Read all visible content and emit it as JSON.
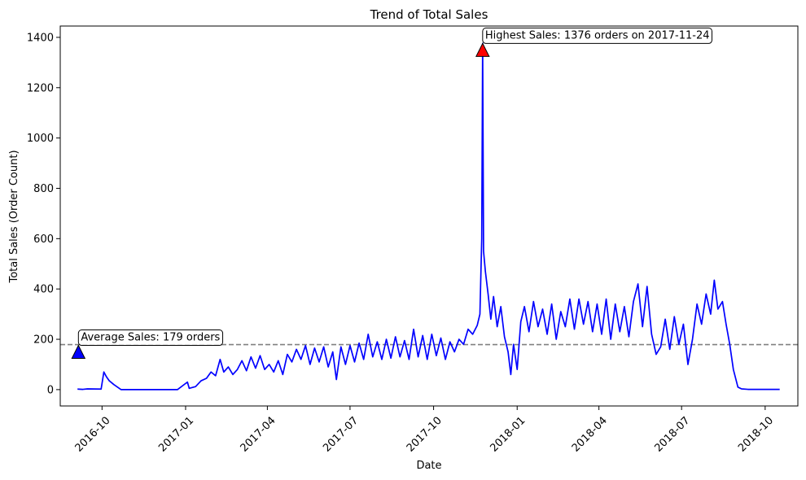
{
  "chart_data": {
    "type": "line",
    "title": "Trend of Total Sales",
    "xlabel": "Date",
    "ylabel": "Total Sales (Order Count)",
    "xlim": [
      "2016-08-16",
      "2018-11-06"
    ],
    "ylim": [
      -65,
      1445
    ],
    "x_ticks": [
      "2016-10",
      "2017-01",
      "2017-04",
      "2017-07",
      "2017-10",
      "2018-01",
      "2018-04",
      "2018-07",
      "2018-10"
    ],
    "y_ticks": [
      0,
      200,
      400,
      600,
      800,
      1000,
      1200,
      1400
    ],
    "grid": false,
    "line_color": "#0000ff",
    "average_line": {
      "value": 179,
      "color": "#808080",
      "style": "dashed"
    },
    "annotations": [
      {
        "text": "Average Sales: 179 orders",
        "x": "2016-09-05",
        "y": 150,
        "marker": "triangle",
        "color": "#0000ff"
      },
      {
        "text": "Highest Sales: 1376 orders on 2017-11-24",
        "x": "2017-11-24",
        "y": 1350,
        "marker": "triangle",
        "color": "#ff0000"
      }
    ],
    "series": [
      {
        "values": [
          [
            "2016-09-04",
            2
          ],
          [
            "2016-09-10",
            1
          ],
          [
            "2016-09-15",
            3
          ],
          [
            "2016-09-30",
            2
          ],
          [
            "2016-10-03",
            70
          ],
          [
            "2016-10-06",
            50
          ],
          [
            "2016-10-09",
            35
          ],
          [
            "2016-10-14",
            20
          ],
          [
            "2016-10-22",
            0
          ],
          [
            "2016-12-23",
            0
          ],
          [
            "2017-01-03",
            30
          ],
          [
            "2017-01-05",
            5
          ],
          [
            "2017-01-12",
            12
          ],
          [
            "2017-01-18",
            35
          ],
          [
            "2017-01-24",
            45
          ],
          [
            "2017-01-29",
            70
          ],
          [
            "2017-02-03",
            55
          ],
          [
            "2017-02-08",
            120
          ],
          [
            "2017-02-12",
            70
          ],
          [
            "2017-02-17",
            90
          ],
          [
            "2017-02-22",
            60
          ],
          [
            "2017-02-27",
            80
          ],
          [
            "2017-03-04",
            115
          ],
          [
            "2017-03-09",
            75
          ],
          [
            "2017-03-14",
            130
          ],
          [
            "2017-03-19",
            85
          ],
          [
            "2017-03-24",
            135
          ],
          [
            "2017-03-29",
            80
          ],
          [
            "2017-04-03",
            100
          ],
          [
            "2017-04-08",
            70
          ],
          [
            "2017-04-13",
            115
          ],
          [
            "2017-04-18",
            60
          ],
          [
            "2017-04-23",
            140
          ],
          [
            "2017-04-28",
            110
          ],
          [
            "2017-05-03",
            160
          ],
          [
            "2017-05-08",
            120
          ],
          [
            "2017-05-13",
            175
          ],
          [
            "2017-05-18",
            100
          ],
          [
            "2017-05-23",
            165
          ],
          [
            "2017-05-28",
            110
          ],
          [
            "2017-06-02",
            170
          ],
          [
            "2017-06-07",
            90
          ],
          [
            "2017-06-12",
            150
          ],
          [
            "2017-06-16",
            40
          ],
          [
            "2017-06-21",
            170
          ],
          [
            "2017-06-26",
            100
          ],
          [
            "2017-07-01",
            175
          ],
          [
            "2017-07-06",
            110
          ],
          [
            "2017-07-11",
            185
          ],
          [
            "2017-07-16",
            120
          ],
          [
            "2017-07-21",
            220
          ],
          [
            "2017-07-26",
            130
          ],
          [
            "2017-07-31",
            190
          ],
          [
            "2017-08-05",
            120
          ],
          [
            "2017-08-10",
            200
          ],
          [
            "2017-08-15",
            125
          ],
          [
            "2017-08-20",
            210
          ],
          [
            "2017-08-25",
            130
          ],
          [
            "2017-08-30",
            195
          ],
          [
            "2017-09-04",
            120
          ],
          [
            "2017-09-09",
            240
          ],
          [
            "2017-09-14",
            130
          ],
          [
            "2017-09-19",
            215
          ],
          [
            "2017-09-24",
            120
          ],
          [
            "2017-09-29",
            220
          ],
          [
            "2017-10-04",
            135
          ],
          [
            "2017-10-09",
            205
          ],
          [
            "2017-10-14",
            120
          ],
          [
            "2017-10-19",
            190
          ],
          [
            "2017-10-24",
            150
          ],
          [
            "2017-10-29",
            200
          ],
          [
            "2017-11-03",
            180
          ],
          [
            "2017-11-08",
            240
          ],
          [
            "2017-11-13",
            220
          ],
          [
            "2017-11-18",
            255
          ],
          [
            "2017-11-21",
            300
          ],
          [
            "2017-11-23",
            600
          ],
          [
            "2017-11-24",
            1376
          ],
          [
            "2017-11-25",
            550
          ],
          [
            "2017-11-27",
            470
          ],
          [
            "2017-11-30",
            380
          ],
          [
            "2017-12-03",
            280
          ],
          [
            "2017-12-06",
            370
          ],
          [
            "2017-12-10",
            250
          ],
          [
            "2017-12-14",
            330
          ],
          [
            "2017-12-18",
            210
          ],
          [
            "2017-12-22",
            150
          ],
          [
            "2017-12-25",
            60
          ],
          [
            "2017-12-28",
            180
          ],
          [
            "2018-01-01",
            80
          ],
          [
            "2018-01-05",
            270
          ],
          [
            "2018-01-09",
            330
          ],
          [
            "2018-01-14",
            230
          ],
          [
            "2018-01-19",
            350
          ],
          [
            "2018-01-24",
            250
          ],
          [
            "2018-01-29",
            320
          ],
          [
            "2018-02-03",
            220
          ],
          [
            "2018-02-08",
            340
          ],
          [
            "2018-02-13",
            200
          ],
          [
            "2018-02-18",
            310
          ],
          [
            "2018-02-23",
            250
          ],
          [
            "2018-02-28",
            360
          ],
          [
            "2018-03-05",
            240
          ],
          [
            "2018-03-10",
            360
          ],
          [
            "2018-03-15",
            260
          ],
          [
            "2018-03-20",
            350
          ],
          [
            "2018-03-25",
            230
          ],
          [
            "2018-03-30",
            340
          ],
          [
            "2018-04-04",
            220
          ],
          [
            "2018-04-09",
            360
          ],
          [
            "2018-04-14",
            200
          ],
          [
            "2018-04-19",
            340
          ],
          [
            "2018-04-24",
            230
          ],
          [
            "2018-04-29",
            330
          ],
          [
            "2018-05-04",
            210
          ],
          [
            "2018-05-09",
            350
          ],
          [
            "2018-05-14",
            420
          ],
          [
            "2018-05-19",
            250
          ],
          [
            "2018-05-24",
            410
          ],
          [
            "2018-05-29",
            220
          ],
          [
            "2018-06-03",
            140
          ],
          [
            "2018-06-08",
            170
          ],
          [
            "2018-06-13",
            280
          ],
          [
            "2018-06-18",
            160
          ],
          [
            "2018-06-23",
            290
          ],
          [
            "2018-06-28",
            180
          ],
          [
            "2018-07-03",
            260
          ],
          [
            "2018-07-08",
            100
          ],
          [
            "2018-07-13",
            200
          ],
          [
            "2018-07-18",
            340
          ],
          [
            "2018-07-23",
            260
          ],
          [
            "2018-07-28",
            380
          ],
          [
            "2018-08-02",
            300
          ],
          [
            "2018-08-06",
            435
          ],
          [
            "2018-08-10",
            320
          ],
          [
            "2018-08-15",
            350
          ],
          [
            "2018-08-19",
            260
          ],
          [
            "2018-08-23",
            180
          ],
          [
            "2018-08-27",
            80
          ],
          [
            "2018-09-01",
            10
          ],
          [
            "2018-09-05",
            3
          ],
          [
            "2018-09-12",
            1
          ],
          [
            "2018-10-17",
            1
          ]
        ]
      }
    ]
  }
}
